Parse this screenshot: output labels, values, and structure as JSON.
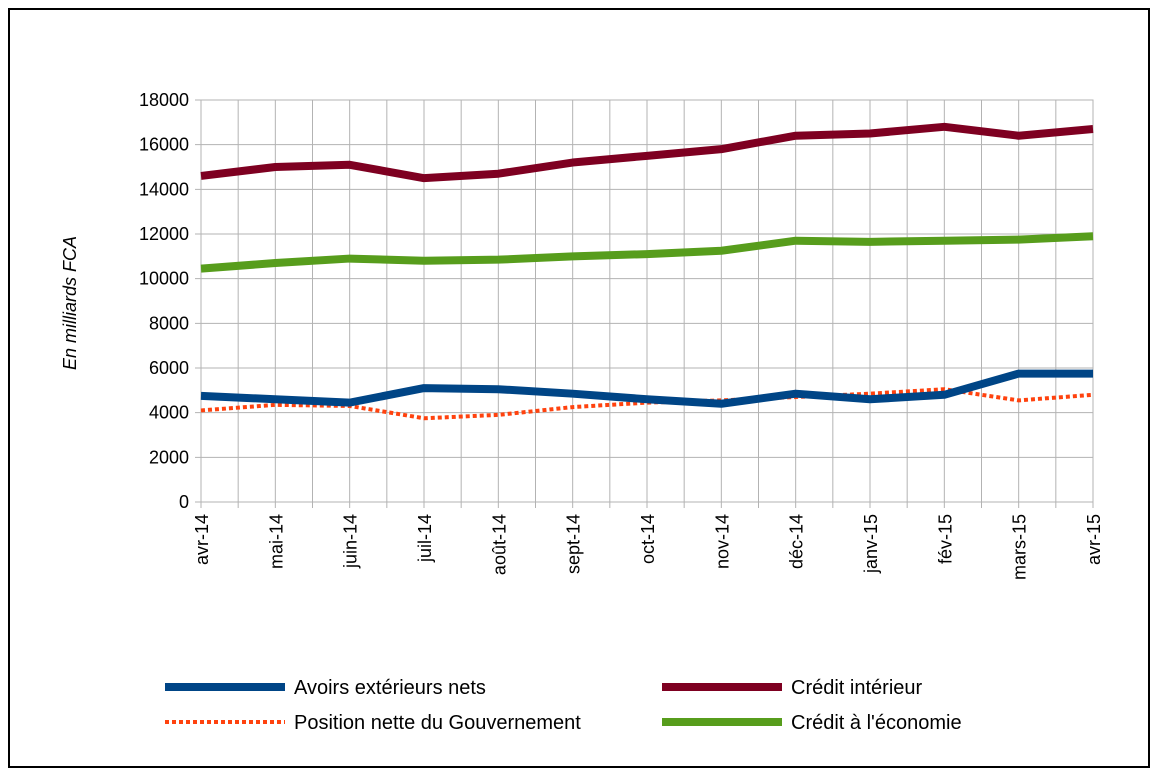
{
  "chart_data": {
    "type": "line",
    "title": "",
    "xlabel": "",
    "ylabel": "En milliards FCA",
    "ylim": [
      0,
      18000
    ],
    "yticks": [
      0,
      2000,
      4000,
      6000,
      8000,
      10000,
      12000,
      14000,
      16000,
      18000
    ],
    "grid": true,
    "legend_position": "bottom",
    "categories": [
      "avr-14",
      "mai-14",
      "juin-14",
      "juil-14",
      "août-14",
      "sept-14",
      "oct-14",
      "nov-14",
      "déc-14",
      "janv-15",
      "fév-15",
      "mars-15",
      "avr-15"
    ],
    "series": [
      {
        "name": "Avoirs extérieurs nets",
        "color": "#004586",
        "style": "solid",
        "values": [
          4750,
          4600,
          4450,
          5100,
          5050,
          4850,
          4600,
          4400,
          4850,
          4600,
          4800,
          5750,
          5750
        ]
      },
      {
        "name": "Crédit intérieur",
        "color": "#7e0021",
        "style": "solid",
        "values": [
          14600,
          15000,
          15100,
          14500,
          14700,
          15200,
          15500,
          15800,
          16400,
          16500,
          16800,
          16400,
          16700
        ]
      },
      {
        "name": "Position nette du Gouvernement",
        "color": "#ff420e",
        "style": "dotted",
        "values": [
          4100,
          4350,
          4300,
          3750,
          3900,
          4250,
          4450,
          4550,
          4700,
          4850,
          5050,
          4550,
          4800
        ]
      },
      {
        "name": "Crédit à l'économie",
        "color": "#579d1c",
        "style": "solid",
        "values": [
          10450,
          10700,
          10900,
          10800,
          10850,
          11000,
          11100,
          11250,
          11700,
          11650,
          11700,
          11750,
          11900
        ]
      }
    ]
  }
}
